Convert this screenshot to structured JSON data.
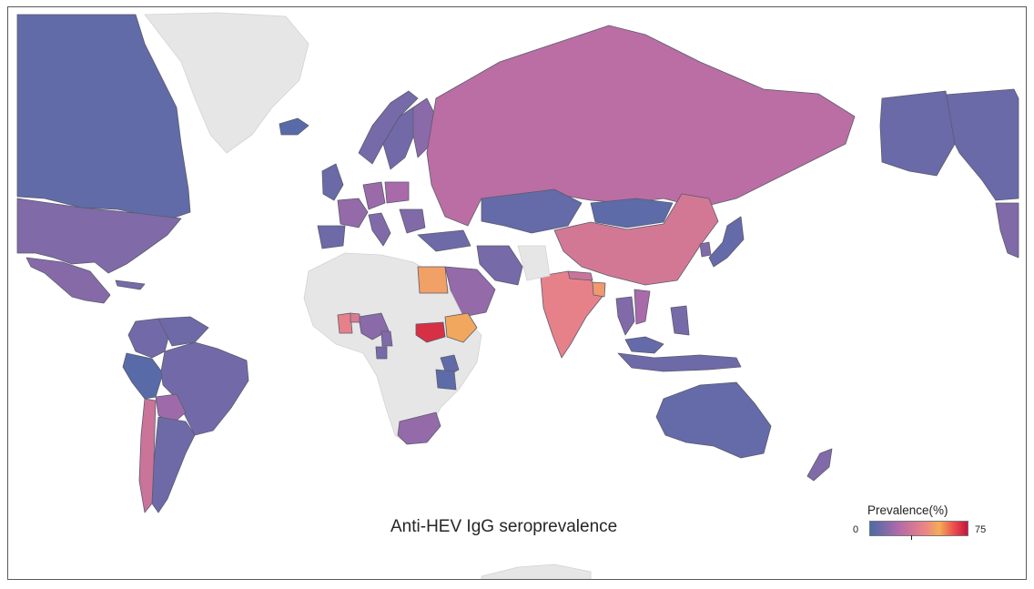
{
  "title": "Anti-HEV IgG seroprevalence",
  "legend": {
    "title": "Prevalence(%)",
    "min_label": "0",
    "max_label": "75",
    "min": 0,
    "max": 75,
    "colors": [
      "#4b6ba8",
      "#7a6aa8",
      "#b06aaa",
      "#d07796",
      "#ee8585",
      "#f2ad56",
      "#ea4d50",
      "#c4163c"
    ]
  },
  "no_data_color": "#e6e6e6",
  "regions": [
    {
      "name": "Canada",
      "prevalence": 5.0
    },
    {
      "name": "United States",
      "prevalence": 12.0
    },
    {
      "name": "Alaska",
      "prevalence": 7.0
    },
    {
      "name": "Mexico",
      "prevalence": 13.0
    },
    {
      "name": "Greenland",
      "prevalence": null
    },
    {
      "name": "Cuba",
      "prevalence": 10.0
    },
    {
      "name": "Colombia",
      "prevalence": 9.0
    },
    {
      "name": "Venezuela",
      "prevalence": 8.0
    },
    {
      "name": "Peru",
      "prevalence": 3.0
    },
    {
      "name": "Brazil",
      "prevalence": 9.0
    },
    {
      "name": "Bolivia",
      "prevalence": 18.0
    },
    {
      "name": "Chile",
      "prevalence": 30.0
    },
    {
      "name": "Argentina",
      "prevalence": 8.0
    },
    {
      "name": "Iceland",
      "prevalence": 3.0
    },
    {
      "name": "Norway",
      "prevalence": 10.0
    },
    {
      "name": "Sweden",
      "prevalence": 9.0
    },
    {
      "name": "Finland",
      "prevalence": 14.0
    },
    {
      "name": "United Kingdom",
      "prevalence": 7.0
    },
    {
      "name": "France",
      "prevalence": 16.0
    },
    {
      "name": "Germany",
      "prevalence": 17.0
    },
    {
      "name": "Poland",
      "prevalence": 20.0
    },
    {
      "name": "Spain",
      "prevalence": 8.0
    },
    {
      "name": "Italy",
      "prevalence": 12.0
    },
    {
      "name": "Greece",
      "prevalence": 12.0
    },
    {
      "name": "Turkey",
      "prevalence": 8.0
    },
    {
      "name": "Russia",
      "prevalence": 25.0
    },
    {
      "name": "Kazakhstan",
      "prevalence": 6.0
    },
    {
      "name": "Mongolia",
      "prevalence": 4.0
    },
    {
      "name": "China",
      "prevalence": 33.0
    },
    {
      "name": "Japan",
      "prevalence": 6.0
    },
    {
      "name": "South Korea",
      "prevalence": 12.0
    },
    {
      "name": "Iran",
      "prevalence": 10.0
    },
    {
      "name": "Saudi Arabia",
      "prevalence": 16.0
    },
    {
      "name": "India",
      "prevalence": 40.0
    },
    {
      "name": "Nepal",
      "prevalence": 30.0
    },
    {
      "name": "Bangladesh",
      "prevalence": 48.0
    },
    {
      "name": "Thailand",
      "prevalence": 12.0
    },
    {
      "name": "Vietnam",
      "prevalence": 20.0
    },
    {
      "name": "Malaysia",
      "prevalence": 6.0
    },
    {
      "name": "Indonesia",
      "prevalence": 8.0
    },
    {
      "name": "Philippines",
      "prevalence": 10.0
    },
    {
      "name": "Australia",
      "prevalence": 6.0
    },
    {
      "name": "New Zealand",
      "prevalence": 12.0
    },
    {
      "name": "Egypt",
      "prevalence": 50.0
    },
    {
      "name": "Ethiopia",
      "prevalence": 52.0
    },
    {
      "name": "South Sudan",
      "prevalence": 70.0
    },
    {
      "name": "Nigeria",
      "prevalence": 14.0
    },
    {
      "name": "Ghana",
      "prevalence": 40.0
    },
    {
      "name": "Burkina Faso",
      "prevalence": 35.0
    },
    {
      "name": "Cameroon",
      "prevalence": 12.0
    },
    {
      "name": "Gabon",
      "prevalence": 10.0
    },
    {
      "name": "Kenya",
      "prevalence": 5.0
    },
    {
      "name": "Tanzania",
      "prevalence": 4.0
    },
    {
      "name": "South Africa",
      "prevalence": 16.0
    },
    {
      "name": "Africa (other)",
      "prevalence": null
    },
    {
      "name": "Middle East (other)",
      "prevalence": null
    },
    {
      "name": "Antarctica",
      "prevalence": null
    }
  ]
}
